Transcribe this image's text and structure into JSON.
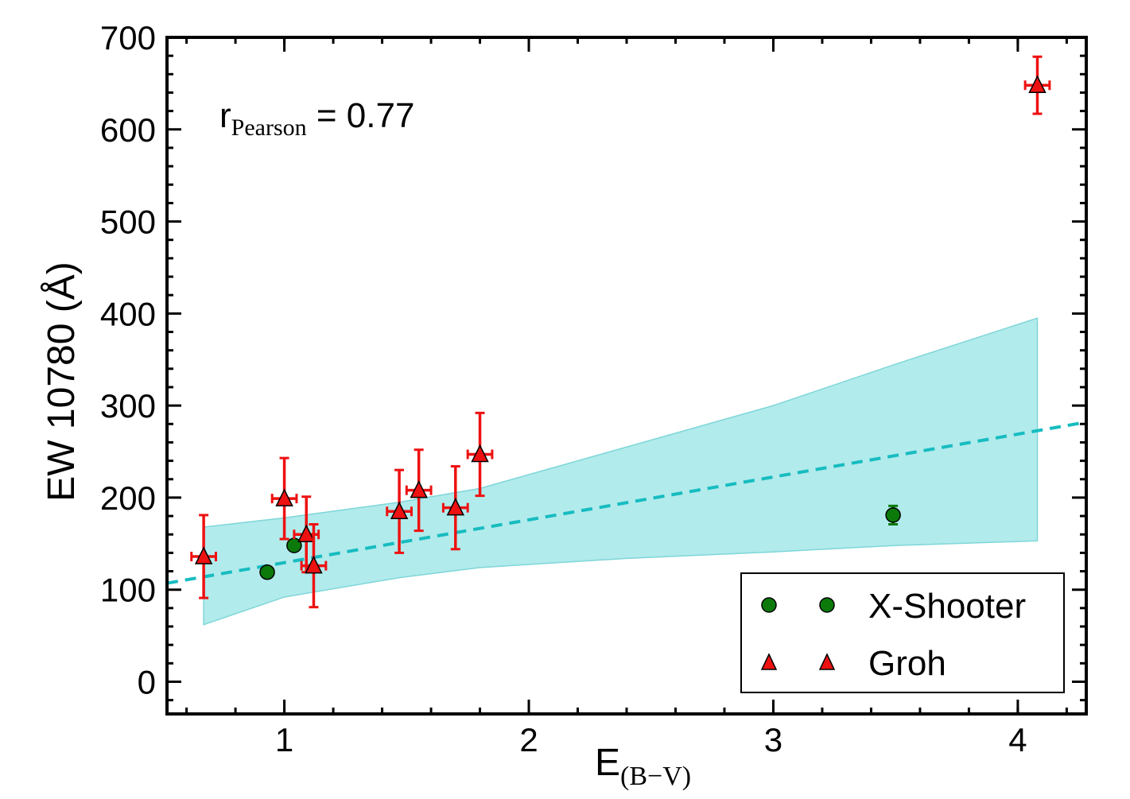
{
  "chart_data": {
    "type": "scatter",
    "xlabel": {
      "main": "E",
      "sub": "(B−V)"
    },
    "ylabel": "EW 10780 (Å)",
    "xlim": [
      0.52,
      4.28
    ],
    "ylim": [
      -35,
      700
    ],
    "x_ticks": [
      1,
      2,
      3,
      4
    ],
    "x_tick_labels": [
      "1",
      "2",
      "3",
      "4"
    ],
    "y_ticks": [
      0,
      100,
      200,
      300,
      400,
      500,
      600,
      700
    ],
    "y_tick_labels": [
      "0",
      "100",
      "200",
      "300",
      "400",
      "500",
      "600",
      "700"
    ],
    "annotation": {
      "main": "r",
      "sub": "Pearson",
      "rest": " = 0.77"
    },
    "series": [
      {
        "name": "X-Shooter",
        "marker": "circle",
        "color": "#0b7a0b",
        "points": [
          {
            "x": 0.93,
            "y": 119,
            "yerr": 4
          },
          {
            "x": 1.04,
            "y": 148,
            "yerr": 4
          },
          {
            "x": 3.49,
            "y": 181,
            "yerr": 10
          }
        ]
      },
      {
        "name": "Groh",
        "marker": "triangle",
        "color": "#ee1111",
        "points": [
          {
            "x": 0.67,
            "y": 136,
            "xerr": 0.05,
            "yerr": 45
          },
          {
            "x": 1.0,
            "y": 199,
            "xerr": 0.05,
            "yerr": 44
          },
          {
            "x": 1.09,
            "y": 160,
            "xerr": 0.05,
            "yerr": 41
          },
          {
            "x": 1.12,
            "y": 126,
            "xerr": 0.05,
            "yerr": 45
          },
          {
            "x": 1.47,
            "y": 185,
            "xerr": 0.05,
            "yerr": 45
          },
          {
            "x": 1.55,
            "y": 208,
            "xerr": 0.05,
            "yerr": 44
          },
          {
            "x": 1.7,
            "y": 189,
            "xerr": 0.05,
            "yerr": 45
          },
          {
            "x": 1.8,
            "y": 247,
            "xerr": 0.05,
            "yerr": 45
          },
          {
            "x": 4.08,
            "y": 648,
            "xerr": 0.05,
            "yerr": 31
          }
        ]
      }
    ],
    "fit_line": {
      "style": "dashed",
      "color": "#17bcc0",
      "points": [
        [
          0.52,
          107
        ],
        [
          4.28,
          282
        ]
      ]
    },
    "confidence_band": {
      "color": "#b2ebec",
      "edge": "#7fd6d8",
      "upper": [
        [
          0.67,
          168
        ],
        [
          1.0,
          178
        ],
        [
          1.47,
          195
        ],
        [
          1.8,
          210
        ],
        [
          2.4,
          255
        ],
        [
          3.0,
          300
        ],
        [
          3.5,
          345
        ],
        [
          4.08,
          395
        ]
      ],
      "lower": [
        [
          0.67,
          62
        ],
        [
          1.0,
          92
        ],
        [
          1.47,
          113
        ],
        [
          1.8,
          124
        ],
        [
          2.4,
          134
        ],
        [
          3.0,
          141
        ],
        [
          3.5,
          148
        ],
        [
          4.08,
          153
        ]
      ]
    },
    "legend": {
      "position": "bottom-right",
      "entries": [
        "X-Shooter",
        "Groh"
      ]
    }
  }
}
